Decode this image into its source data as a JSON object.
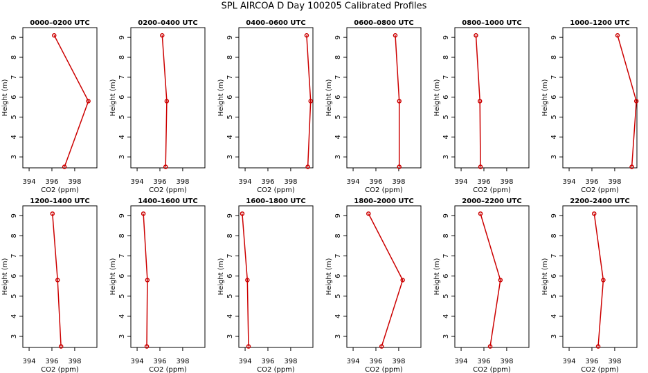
{
  "title": "SPL AIRCOA D  Day 100205  Calibrated Profiles",
  "chart_data": [
    {
      "type": "line",
      "title": "0000–0200 UTC",
      "x_label": "CO2 (ppm)",
      "y_label": "Height (m)",
      "color": "#cc0000",
      "xlim": [
        393.45,
        399.95
      ],
      "xticks": [
        394,
        396,
        398
      ],
      "ylim": [
        2.45,
        9.49
      ],
      "yticks": [
        3,
        4,
        5,
        6,
        7,
        8,
        9
      ],
      "x": [
        396.2,
        399.2,
        397.1
      ],
      "y": [
        9.1,
        5.8,
        2.5
      ]
    },
    {
      "type": "line",
      "title": "0200–0400 UTC",
      "x_label": "CO2 (ppm)",
      "y_label": "Height (m)",
      "color": "#cc0000",
      "xlim": [
        393.45,
        399.95
      ],
      "xticks": [
        394,
        396,
        398
      ],
      "ylim": [
        2.45,
        9.49
      ],
      "yticks": [
        3,
        4,
        5,
        6,
        7,
        8,
        9
      ],
      "x": [
        396.2,
        396.6,
        396.5
      ],
      "y": [
        9.1,
        5.8,
        2.5
      ]
    },
    {
      "type": "line",
      "title": "0400–0600 UTC",
      "x_label": "CO2 (ppm)",
      "y_label": "Height (m)",
      "color": "#cc0000",
      "xlim": [
        393.45,
        399.95
      ],
      "xticks": [
        394,
        396,
        398
      ],
      "ylim": [
        2.45,
        9.49
      ],
      "yticks": [
        3,
        4,
        5,
        6,
        7,
        8,
        9
      ],
      "x": [
        399.4,
        399.75,
        399.5
      ],
      "y": [
        9.1,
        5.8,
        2.5
      ]
    },
    {
      "type": "line",
      "title": "0600–0800 UTC",
      "x_label": "CO2 (ppm)",
      "y_label": "Height (m)",
      "color": "#cc0000",
      "xlim": [
        393.45,
        399.95
      ],
      "xticks": [
        394,
        396,
        398
      ],
      "ylim": [
        2.45,
        9.49
      ],
      "yticks": [
        3,
        4,
        5,
        6,
        7,
        8,
        9
      ],
      "x": [
        397.7,
        398.05,
        398.05
      ],
      "y": [
        9.1,
        5.8,
        2.5
      ]
    },
    {
      "type": "line",
      "title": "0800–1000 UTC",
      "x_label": "CO2 (ppm)",
      "y_label": "Height (m)",
      "color": "#cc0000",
      "xlim": [
        393.45,
        399.95
      ],
      "xticks": [
        394,
        396,
        398
      ],
      "ylim": [
        2.45,
        9.49
      ],
      "yticks": [
        3,
        4,
        5,
        6,
        7,
        8,
        9
      ],
      "x": [
        395.3,
        395.65,
        395.7
      ],
      "y": [
        9.1,
        5.8,
        2.5
      ]
    },
    {
      "type": "line",
      "title": "1000–1200 UTC",
      "x_label": "CO2 (ppm)",
      "y_label": "Height (m)",
      "color": "#cc0000",
      "xlim": [
        393.45,
        399.95
      ],
      "xticks": [
        394,
        396,
        398
      ],
      "ylim": [
        2.45,
        9.49
      ],
      "yticks": [
        3,
        4,
        5,
        6,
        7,
        8,
        9
      ],
      "x": [
        398.25,
        399.9,
        399.5
      ],
      "y": [
        9.1,
        5.8,
        2.5
      ]
    },
    {
      "type": "line",
      "title": "1200–1400 UTC",
      "x_label": "CO2 (ppm)",
      "y_label": "Height (m)",
      "color": "#cc0000",
      "xlim": [
        393.45,
        399.95
      ],
      "xticks": [
        394,
        396,
        398
      ],
      "ylim": [
        2.45,
        9.49
      ],
      "yticks": [
        3,
        4,
        5,
        6,
        7,
        8,
        9
      ],
      "x": [
        396.05,
        396.5,
        396.8
      ],
      "y": [
        9.1,
        5.8,
        2.5
      ]
    },
    {
      "type": "line",
      "title": "1400–1600 UTC",
      "x_label": "CO2 (ppm)",
      "y_label": "Height (m)",
      "color": "#cc0000",
      "xlim": [
        393.45,
        399.95
      ],
      "xticks": [
        394,
        396,
        398
      ],
      "ylim": [
        2.45,
        9.49
      ],
      "yticks": [
        3,
        4,
        5,
        6,
        7,
        8,
        9
      ],
      "x": [
        394.55,
        394.9,
        394.85
      ],
      "y": [
        9.1,
        5.8,
        2.5
      ]
    },
    {
      "type": "line",
      "title": "1600–1800 UTC",
      "x_label": "CO2 (ppm)",
      "y_label": "Height (m)",
      "color": "#cc0000",
      "xlim": [
        393.45,
        399.95
      ],
      "xticks": [
        394,
        396,
        398
      ],
      "ylim": [
        2.45,
        9.49
      ],
      "yticks": [
        3,
        4,
        5,
        6,
        7,
        8,
        9
      ],
      "x": [
        393.75,
        394.2,
        394.3
      ],
      "y": [
        9.1,
        5.8,
        2.5
      ]
    },
    {
      "type": "line",
      "title": "1800–2000 UTC",
      "x_label": "CO2 (ppm)",
      "y_label": "Height (m)",
      "color": "#cc0000",
      "xlim": [
        393.45,
        399.95
      ],
      "xticks": [
        394,
        396,
        398
      ],
      "ylim": [
        2.45,
        9.49
      ],
      "yticks": [
        3,
        4,
        5,
        6,
        7,
        8,
        9
      ],
      "x": [
        395.35,
        398.35,
        396.5
      ],
      "y": [
        9.1,
        5.8,
        2.5
      ]
    },
    {
      "type": "line",
      "title": "2000–2200 UTC",
      "x_label": "CO2 (ppm)",
      "y_label": "Height (m)",
      "color": "#cc0000",
      "xlim": [
        393.45,
        399.95
      ],
      "xticks": [
        394,
        396,
        398
      ],
      "ylim": [
        2.45,
        9.49
      ],
      "yticks": [
        3,
        4,
        5,
        6,
        7,
        8,
        9
      ],
      "x": [
        395.7,
        397.45,
        396.55
      ],
      "y": [
        9.1,
        5.8,
        2.5
      ]
    },
    {
      "type": "line",
      "title": "2200–2400 UTC",
      "x_label": "CO2 (ppm)",
      "y_label": "Height (m)",
      "color": "#cc0000",
      "xlim": [
        393.45,
        399.95
      ],
      "xticks": [
        394,
        396,
        398
      ],
      "ylim": [
        2.45,
        9.49
      ],
      "yticks": [
        3,
        4,
        5,
        6,
        7,
        8,
        9
      ],
      "x": [
        396.2,
        397.0,
        396.55
      ],
      "y": [
        9.1,
        5.8,
        2.5
      ]
    }
  ]
}
